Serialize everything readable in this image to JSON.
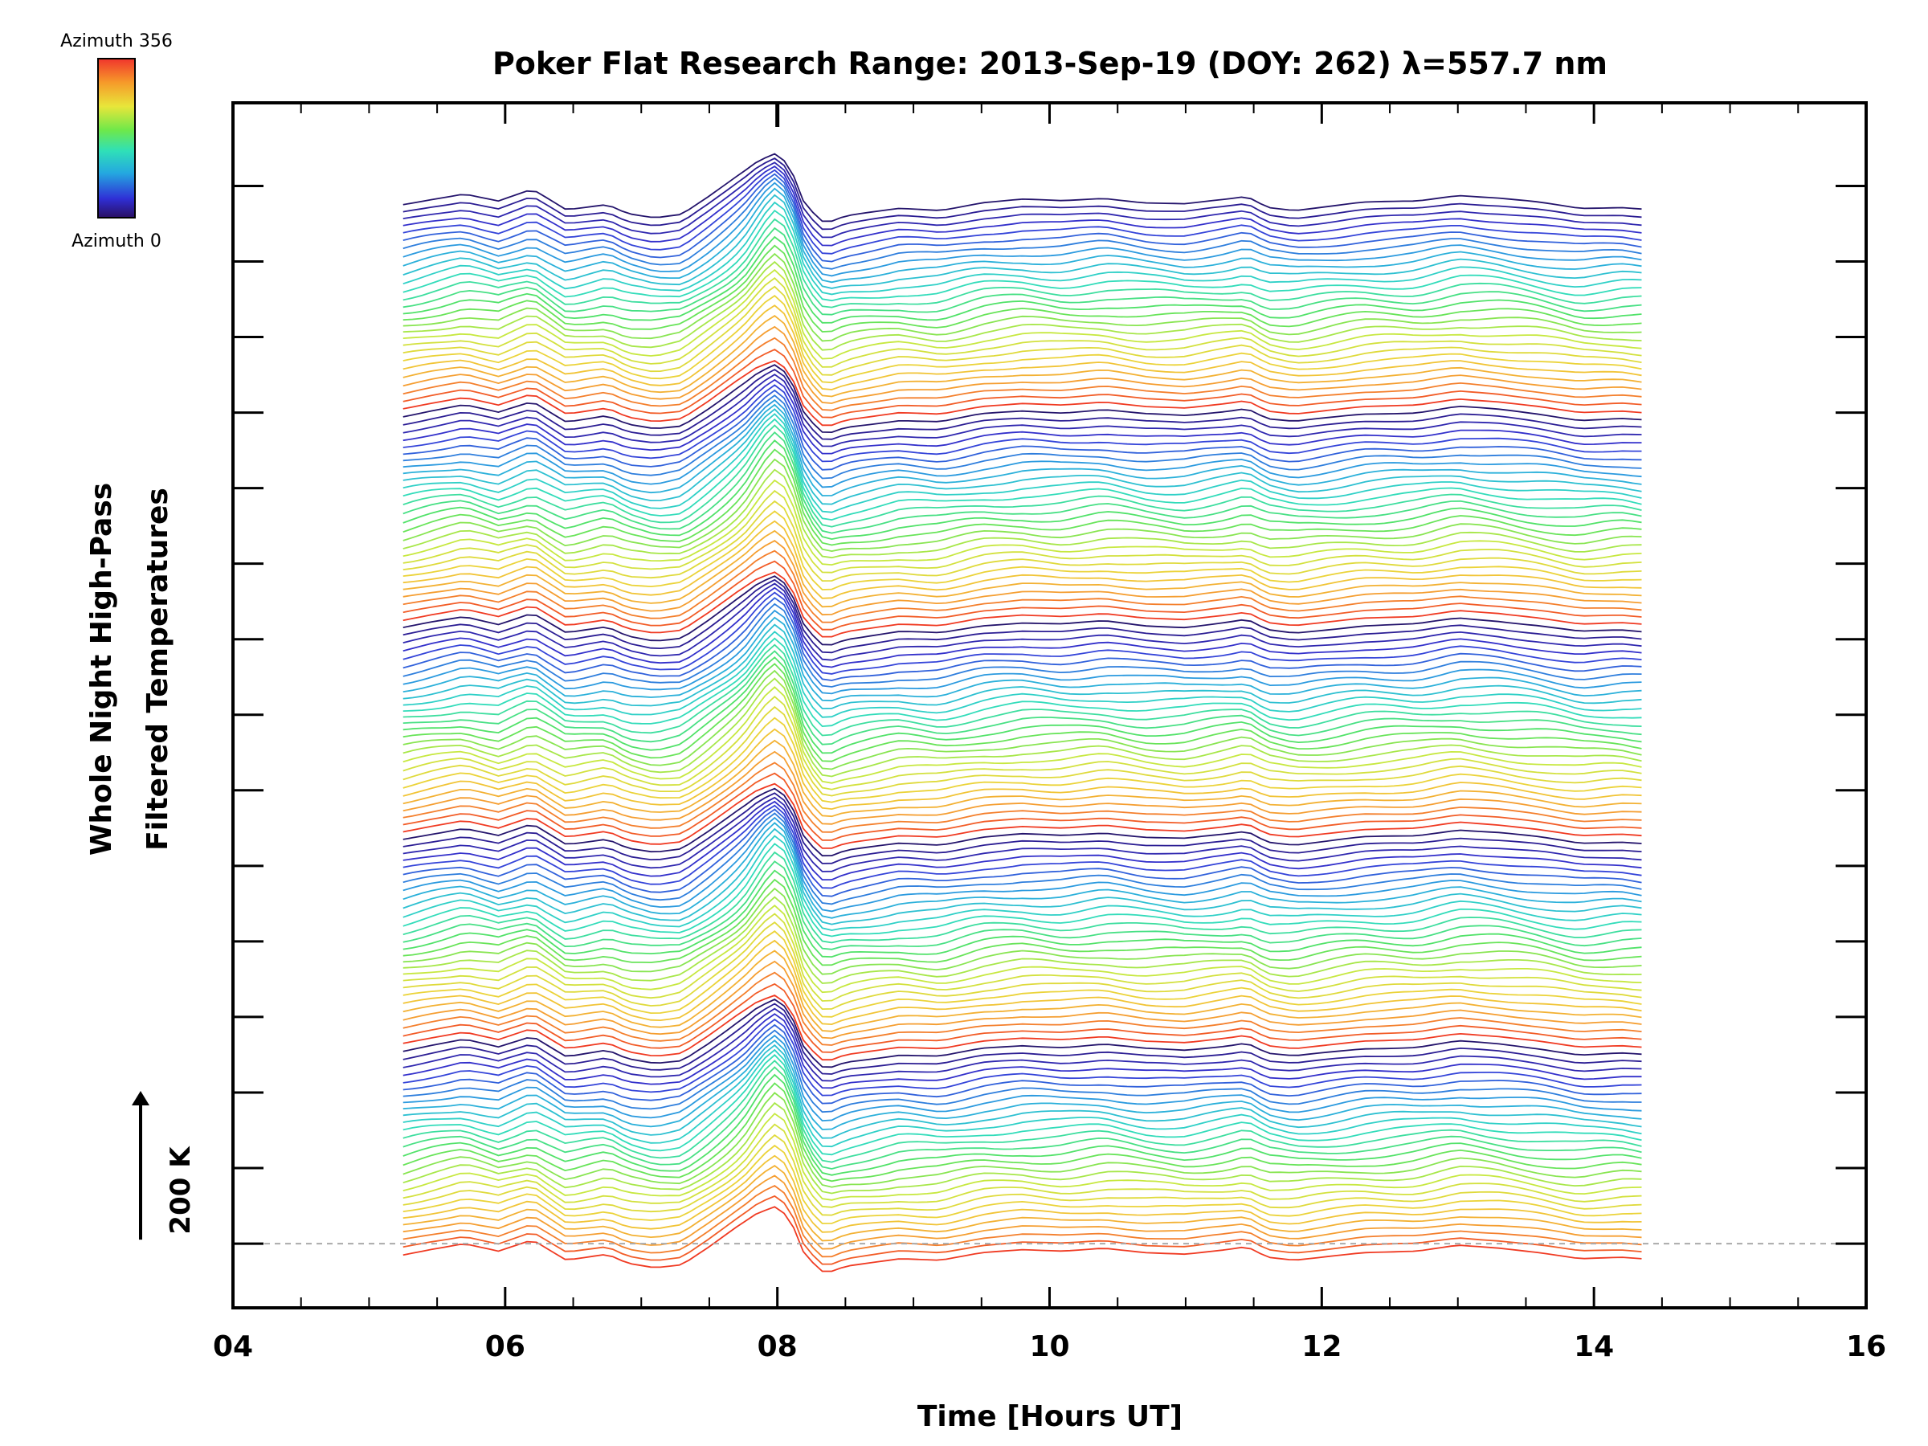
{
  "chart_data": {
    "type": "line",
    "title": "Poker Flat Research Range: 2013-Sep-19 (DOY: 262) λ=557.7 nm",
    "xlabel": "Time [Hours UT]",
    "ylabel_lines": [
      "Whole Night High-Pass",
      "Filtered Temperatures"
    ],
    "xlim": [
      4,
      16
    ],
    "x_ticks": [
      4,
      6,
      8,
      10,
      12,
      14,
      16
    ],
    "x_tick_labels": [
      "04",
      "06",
      "08",
      "10",
      "12",
      "14",
      "16"
    ],
    "y_units": "K",
    "ylim": [
      -85,
      1510
    ],
    "y_major_ticks": [
      0,
      100,
      200,
      300,
      400,
      500,
      600,
      700,
      800,
      900,
      1000,
      1100,
      1200,
      1300,
      1400
    ],
    "scale_bar": {
      "label": "200 K",
      "value_k": 200
    },
    "baseline_reference": 0,
    "colorbar": {
      "label_top": "Azimuth 356",
      "label_bottom": "Azimuth 0",
      "min": 0,
      "max": 356,
      "colormap": "rainbow"
    },
    "time_start": 5.25,
    "time_end": 14.35,
    "time_step": 0.07,
    "trace_count": 140,
    "trace_offset_k": 10,
    "color_cycles": 5,
    "base_signal_k": [
      [
        5.25,
        -15
      ],
      [
        5.45,
        -8
      ],
      [
        5.7,
        0
      ],
      [
        5.95,
        -10
      ],
      [
        6.2,
        5
      ],
      [
        6.45,
        -22
      ],
      [
        6.6,
        -18
      ],
      [
        6.75,
        -14
      ],
      [
        6.9,
        -26
      ],
      [
        7.1,
        -32
      ],
      [
        7.3,
        -28
      ],
      [
        7.5,
        -4
      ],
      [
        7.7,
        22
      ],
      [
        7.85,
        40
      ],
      [
        8.0,
        50
      ],
      [
        8.1,
        30
      ],
      [
        8.2,
        -15
      ],
      [
        8.35,
        -40
      ],
      [
        8.5,
        -30
      ],
      [
        8.7,
        -25
      ],
      [
        8.9,
        -20
      ],
      [
        9.2,
        -22
      ],
      [
        9.5,
        -12
      ],
      [
        9.8,
        -8
      ],
      [
        10.1,
        -10
      ],
      [
        10.4,
        -6
      ],
      [
        10.7,
        -12
      ],
      [
        11.0,
        -14
      ],
      [
        11.3,
        -8
      ],
      [
        11.45,
        -4
      ],
      [
        11.6,
        -18
      ],
      [
        11.8,
        -22
      ],
      [
        12.0,
        -18
      ],
      [
        12.3,
        -12
      ],
      [
        12.7,
        -10
      ],
      [
        13.0,
        -2
      ],
      [
        13.3,
        -6
      ],
      [
        13.6,
        -12
      ],
      [
        13.9,
        -20
      ],
      [
        14.2,
        -18
      ],
      [
        14.35,
        -20
      ]
    ],
    "meteor_event_k": {
      "center": 8.0,
      "width": 0.18,
      "growth": 0.9
    },
    "annotations": [
      "tick mark at 08 UT on top axis",
      "dashed reference line at 0 K"
    ]
  }
}
